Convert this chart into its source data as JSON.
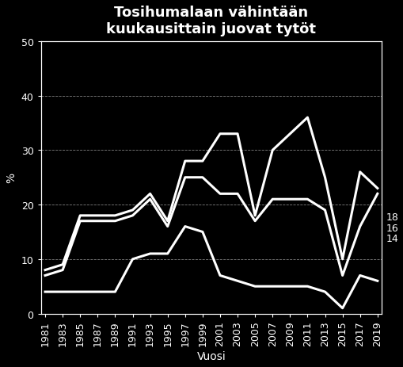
{
  "title": "Tosihumalaan vähintään\nkuukausittain juovat tytöt",
  "xlabel": "Vuosi",
  "ylabel": "%",
  "background_color": "#000000",
  "text_color": "#ffffff",
  "line_color": "#ffffff",
  "years": [
    1981,
    1983,
    1985,
    1987,
    1989,
    1991,
    1993,
    1995,
    1997,
    1999,
    2001,
    2003,
    2005,
    2007,
    2009,
    2011,
    2013,
    2015,
    2017,
    2019
  ],
  "line_top": [
    8,
    9,
    18,
    18,
    18,
    19,
    22,
    17,
    28,
    28,
    33,
    33,
    18,
    30,
    33,
    36,
    25,
    10,
    26,
    23
  ],
  "line_mid": [
    7,
    8,
    17,
    17,
    17,
    18,
    21,
    16,
    25,
    25,
    22,
    22,
    17,
    21,
    21,
    21,
    19,
    7,
    16,
    22
  ],
  "line_bot": [
    4,
    4,
    4,
    4,
    4,
    10,
    11,
    11,
    16,
    15,
    7,
    6,
    5,
    5,
    5,
    5,
    4,
    1,
    7,
    6
  ],
  "ylim": [
    0,
    50
  ],
  "yticks": [
    0,
    10,
    20,
    30,
    40,
    50
  ],
  "right_labels": [
    {
      "y": 14,
      "text": "14"
    },
    {
      "y": 16,
      "text": "16"
    },
    {
      "y": 18,
      "text": "18"
    }
  ],
  "grid_color": "#ffffff",
  "title_fontsize": 13,
  "axis_fontsize": 10,
  "tick_fontsize": 9,
  "line_width": 2.2,
  "figsize": [
    5.1,
    4.64
  ],
  "dpi": 100
}
